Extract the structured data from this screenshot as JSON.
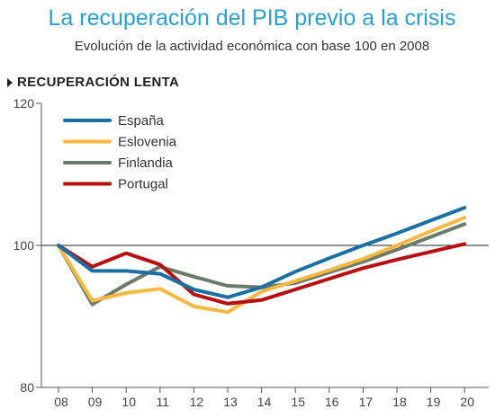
{
  "title": "La recuperación del PIB previo a la crisis",
  "subtitle": "Evolución de la actividad económica con base 100 en 2008",
  "section_label": "RECUPERACIÓN LENTA",
  "chart_data": {
    "type": "line",
    "title": "La recuperación del PIB previo a la crisis",
    "subtitle": "Evolución de la actividad económica con base 100 en 2008",
    "xlabel": "",
    "ylabel": "",
    "x": [
      "08",
      "09",
      "10",
      "11",
      "12",
      "13",
      "14",
      "15",
      "16",
      "17",
      "18",
      "19",
      "20"
    ],
    "ylim": [
      80,
      120
    ],
    "yticks": [
      80,
      100,
      120
    ],
    "reference_line": 100,
    "legend_position": "top-left",
    "grid": false,
    "series": [
      {
        "name": "España",
        "color": "#1a6fa3",
        "values": [
          100,
          96.4,
          96.4,
          96.0,
          93.8,
          92.7,
          94.1,
          96.3,
          98.2,
          100.0,
          101.7,
          103.5,
          105.3
        ]
      },
      {
        "name": "Eslovenia",
        "color": "#f5b841",
        "values": [
          100,
          92.2,
          93.3,
          93.9,
          91.4,
          90.6,
          93.5,
          95.0,
          96.5,
          98.1,
          100.0,
          102.0,
          103.9
        ]
      },
      {
        "name": "Finlandia",
        "color": "#6c7a6b",
        "values": [
          100,
          91.7,
          94.5,
          97.0,
          95.6,
          94.3,
          94.1,
          94.7,
          96.2,
          97.7,
          99.4,
          101.2,
          103.0
        ]
      },
      {
        "name": "Portugal",
        "color": "#b80f0f",
        "values": [
          100,
          97.0,
          98.9,
          97.3,
          93.1,
          91.8,
          92.3,
          93.8,
          95.3,
          96.8,
          98.0,
          99.1,
          100.2
        ]
      }
    ]
  }
}
